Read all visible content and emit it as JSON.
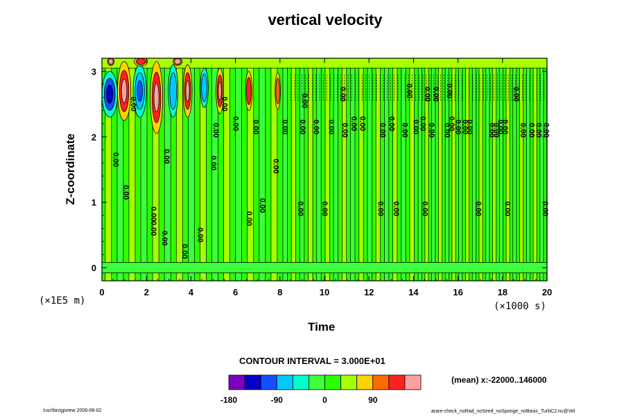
{
  "chart_data": {
    "type": "heatmap",
    "title": "vertical velocity",
    "xlabel": "Time",
    "ylabel": "Z-coordinate",
    "x_unit": "(×1000 s)",
    "y_unit": "(×1E5 m)",
    "xlim": [
      0,
      20
    ],
    "ylim": [
      -0.2,
      3.2
    ],
    "x_ticks": [
      0,
      2,
      4,
      6,
      8,
      10,
      12,
      14,
      16,
      18,
      20
    ],
    "y_ticks": [
      0,
      1,
      2,
      3
    ],
    "contour_interval": "CONTOUR INTERVAL = 3.000E+01",
    "mean_note": "(mean) x:-22000..146000",
    "colorbar": {
      "ticks": [
        -180,
        -90,
        0,
        90
      ],
      "levels": [
        -180,
        -150,
        -120,
        -90,
        -60,
        -30,
        0,
        30,
        60,
        90,
        120,
        150
      ],
      "colors": [
        "#7a00c0",
        "#0000c8",
        "#1450ff",
        "#00c8ff",
        "#00ffc8",
        "#3cff3c",
        "#2bff00",
        "#a8ff00",
        "#ffd200",
        "#ff6a00",
        "#ff2020",
        "#ffa0a0"
      ]
    },
    "contour_labels": [
      {
        "x": 0.6,
        "y": 1.65,
        "text": "0.00"
      },
      {
        "x": 1.05,
        "y": 1.15,
        "text": "0.00"
      },
      {
        "x": 1.4,
        "y": 2.5,
        "text": "0.00"
      },
      {
        "x": 2.3,
        "y": 0.82,
        "text": "0.00"
      },
      {
        "x": 2.3,
        "y": 0.6,
        "text": "0.00"
      },
      {
        "x": 2.8,
        "y": 0.45,
        "text": "0.00"
      },
      {
        "x": 2.9,
        "y": 1.7,
        "text": "0.00"
      },
      {
        "x": 3.7,
        "y": 0.25,
        "text": "0.00"
      },
      {
        "x": 4.4,
        "y": 0.5,
        "text": "0.00"
      },
      {
        "x": 5.0,
        "y": 1.6,
        "text": "0.00"
      },
      {
        "x": 5.1,
        "y": 2.1,
        "text": "0.00"
      },
      {
        "x": 5.5,
        "y": 2.5,
        "text": "0.00"
      },
      {
        "x": 6.0,
        "y": 2.2,
        "text": "0.00"
      },
      {
        "x": 6.6,
        "y": 0.75,
        "text": "0.00"
      },
      {
        "x": 6.9,
        "y": 2.15,
        "text": "0.00"
      },
      {
        "x": 7.2,
        "y": 0.95,
        "text": "0.00"
      },
      {
        "x": 7.8,
        "y": 1.55,
        "text": "0.00"
      },
      {
        "x": 8.2,
        "y": 2.15,
        "text": "0.00"
      },
      {
        "x": 8.9,
        "y": 0.9,
        "text": "0.00"
      },
      {
        "x": 9.0,
        "y": 2.15,
        "text": "0.00"
      },
      {
        "x": 9.1,
        "y": 2.55,
        "text": "0.00"
      },
      {
        "x": 9.6,
        "y": 2.15,
        "text": "0.00"
      },
      {
        "x": 10.0,
        "y": 0.9,
        "text": "0.00"
      },
      {
        "x": 10.3,
        "y": 2.15,
        "text": "0.00"
      },
      {
        "x": 10.8,
        "y": 2.65,
        "text": "0.00"
      },
      {
        "x": 10.9,
        "y": 2.1,
        "text": "0.00"
      },
      {
        "x": 11.3,
        "y": 2.2,
        "text": "0.00"
      },
      {
        "x": 11.7,
        "y": 2.2,
        "text": "0.00"
      },
      {
        "x": 12.5,
        "y": 0.9,
        "text": "0.00"
      },
      {
        "x": 12.6,
        "y": 2.1,
        "text": "0.00"
      },
      {
        "x": 13.0,
        "y": 2.2,
        "text": "0.00"
      },
      {
        "x": 13.2,
        "y": 0.9,
        "text": "0.00"
      },
      {
        "x": 13.6,
        "y": 2.1,
        "text": "0.00"
      },
      {
        "x": 13.8,
        "y": 2.7,
        "text": "0.00"
      },
      {
        "x": 14.1,
        "y": 2.15,
        "text": "0.00"
      },
      {
        "x": 14.4,
        "y": 2.2,
        "text": "0.00"
      },
      {
        "x": 14.5,
        "y": 0.9,
        "text": "0.00"
      },
      {
        "x": 14.6,
        "y": 2.65,
        "text": "0.00"
      },
      {
        "x": 14.8,
        "y": 2.1,
        "text": "0.00"
      },
      {
        "x": 15.0,
        "y": 2.65,
        "text": "0.00"
      },
      {
        "x": 15.5,
        "y": 2.1,
        "text": "0.00"
      },
      {
        "x": 15.6,
        "y": 2.7,
        "text": "0.00"
      },
      {
        "x": 15.7,
        "y": 2.2,
        "text": "0.00"
      },
      {
        "x": 16.0,
        "y": 2.15,
        "text": "0.00"
      },
      {
        "x": 16.3,
        "y": 2.15,
        "text": "0.00"
      },
      {
        "x": 16.5,
        "y": 2.15,
        "text": "0.00"
      },
      {
        "x": 16.9,
        "y": 0.9,
        "text": "0.00"
      },
      {
        "x": 17.5,
        "y": 2.1,
        "text": "0.00"
      },
      {
        "x": 17.7,
        "y": 2.1,
        "text": "0.00"
      },
      {
        "x": 17.9,
        "y": 2.15,
        "text": "0.00"
      },
      {
        "x": 18.1,
        "y": 2.15,
        "text": "0.00"
      },
      {
        "x": 18.2,
        "y": 0.9,
        "text": "0.00"
      },
      {
        "x": 18.6,
        "y": 2.65,
        "text": "0.00"
      },
      {
        "x": 18.9,
        "y": 2.1,
        "text": "0.00"
      },
      {
        "x": 19.3,
        "y": 2.1,
        "text": "0.00"
      },
      {
        "x": 19.6,
        "y": 2.1,
        "text": "0.00"
      },
      {
        "x": 19.9,
        "y": 0.9,
        "text": "0.00"
      },
      {
        "x": 19.95,
        "y": 2.1,
        "text": "0.00"
      }
    ],
    "grid": false,
    "legend": "bottom-center"
  },
  "footer": {
    "left": "/usr/bin/gpview 2006-08-02",
    "right": "arare-check_noRad_noSeed_noSponge_noBasic_TurbC2.nc@Vel"
  }
}
